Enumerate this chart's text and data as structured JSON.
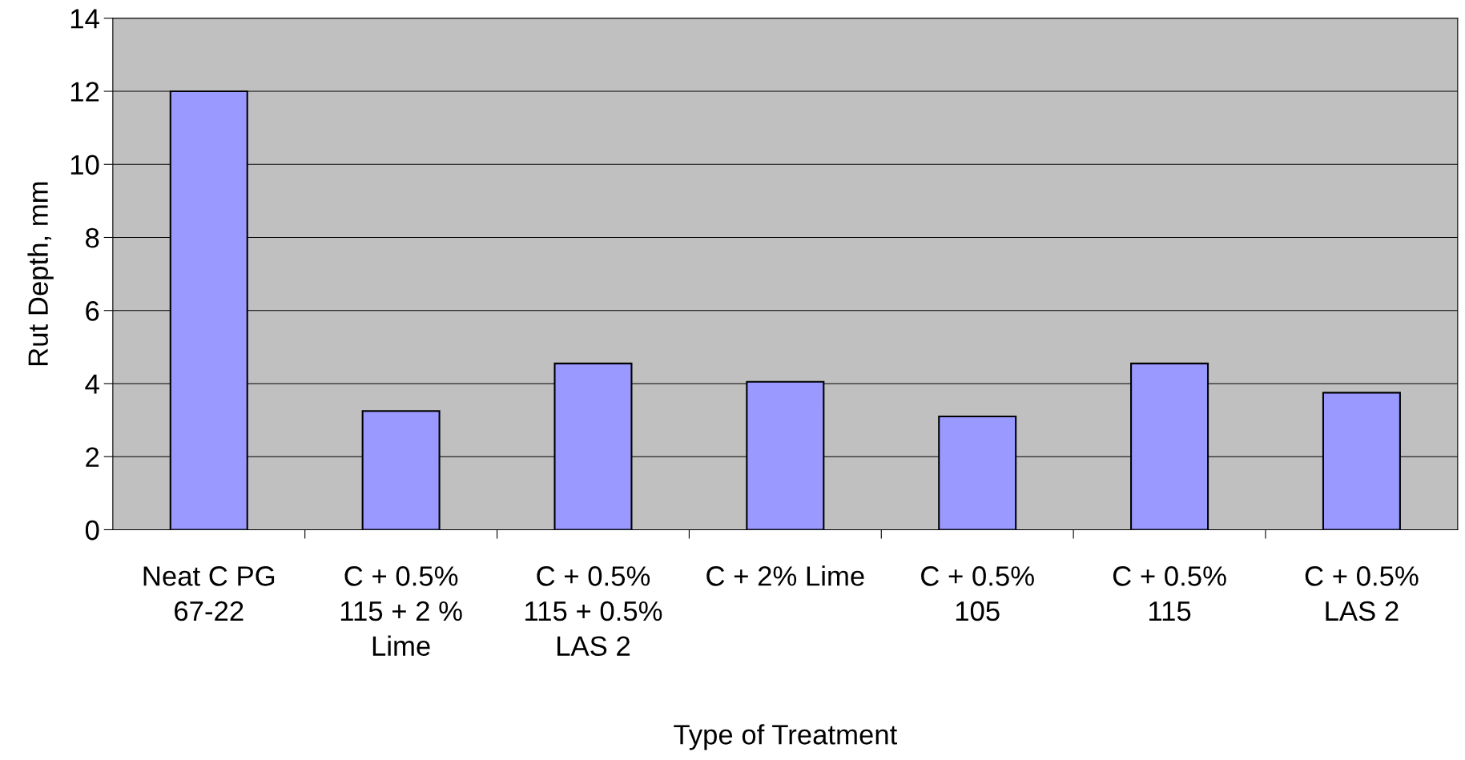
{
  "chart_data": {
    "type": "bar",
    "xlabel": "Type of Treatment",
    "ylabel": "Rut Depth, mm",
    "categories": [
      "Neat C PG\n67-22",
      "C + 0.5%\n115 + 2 %\nLime",
      "C + 0.5%\n115 + 0.5%\nLAS 2",
      "C + 2% Lime",
      "C + 0.5%\n105",
      "C + 0.5%\n115",
      "C + 0.5%\nLAS 2"
    ],
    "values": [
      12.0,
      3.25,
      4.55,
      4.05,
      3.1,
      4.55,
      3.75
    ],
    "color": "#9999ff",
    "ylim": [
      0,
      14
    ],
    "yticks": [
      0,
      2,
      4,
      6,
      8,
      10,
      12,
      14
    ],
    "grid": "y",
    "legend": false
  }
}
